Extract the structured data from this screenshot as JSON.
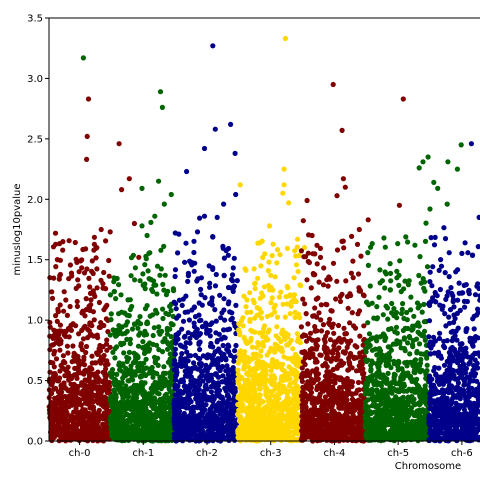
{
  "chart_data": {
    "type": "scatter",
    "xlabel": "Chromosome",
    "ylabel": "minuslog10pvalue",
    "ylim": [
      0,
      3.5
    ],
    "yticks": [
      "0.0",
      "0.5",
      "1.0",
      "1.5",
      "2.0",
      "2.5",
      "3.0",
      "3.5"
    ],
    "categories": [
      "ch-0",
      "ch-1",
      "ch-2",
      "ch-3",
      "ch-4",
      "ch-5",
      "ch-6"
    ],
    "grid": false,
    "legend": "none",
    "colors": [
      "#800000",
      "#006400",
      "#00008b",
      "#ffd700",
      "#800000",
      "#006400",
      "#00008b"
    ],
    "series": [
      {
        "category": "ch-0",
        "notable_points": [
          [
            0.14,
            2.83
          ],
          [
            0.12,
            2.52
          ],
          [
            0.11,
            2.33
          ],
          [
            0.62,
            2.46
          ],
          [
            0.78,
            2.17
          ],
          [
            0.66,
            2.08
          ],
          [
            0.86,
            1.8
          ],
          [
            0.34,
            1.75
          ],
          [
            0.48,
            1.73
          ],
          [
            0.27,
            1.6
          ],
          [
            0.93,
            1.52
          ],
          [
            0.2,
            1.49
          ]
        ]
      },
      {
        "category": "ch-1",
        "notable_points": [
          [
            0.06,
            3.17
          ],
          [
            1.27,
            2.89
          ],
          [
            1.3,
            2.76
          ],
          [
            1.24,
            2.15
          ],
          [
            0.98,
            2.09
          ],
          [
            1.33,
            1.96
          ],
          [
            1.18,
            1.86
          ],
          [
            0.98,
            1.78
          ],
          [
            1.44,
            2.04
          ],
          [
            1.06,
            1.7
          ],
          [
            1.32,
            1.61
          ]
        ]
      },
      {
        "category": "ch-2",
        "notable_points": [
          [
            2.09,
            3.27
          ],
          [
            2.37,
            2.62
          ],
          [
            2.13,
            2.58
          ],
          [
            1.96,
            2.42
          ],
          [
            2.44,
            2.38
          ],
          [
            1.68,
            2.23
          ],
          [
            2.26,
            1.96
          ],
          [
            2.45,
            2.04
          ],
          [
            1.96,
            1.86
          ],
          [
            2.16,
            1.85
          ],
          [
            1.85,
            1.73
          ]
        ]
      },
      {
        "category": "ch-3",
        "notable_points": [
          [
            3.23,
            3.33
          ],
          [
            3.21,
            2.25
          ],
          [
            3.21,
            2.12
          ],
          [
            2.52,
            2.12
          ],
          [
            3.19,
            2.05
          ],
          [
            3.28,
            1.97
          ],
          [
            2.98,
            1.78
          ],
          [
            3.42,
            1.67
          ],
          [
            2.83,
            1.64
          ],
          [
            3.53,
            1.6
          ]
        ]
      },
      {
        "category": "ch-4",
        "notable_points": [
          [
            3.98,
            2.95
          ],
          [
            5.08,
            2.83
          ],
          [
            4.12,
            2.57
          ],
          [
            4.14,
            2.17
          ],
          [
            4.04,
            2.03
          ],
          [
            4.17,
            2.1
          ],
          [
            3.57,
            1.99
          ],
          [
            5.02,
            1.95
          ],
          [
            4.53,
            1.83
          ],
          [
            4.39,
            1.75
          ]
        ]
      },
      {
        "category": "ch-5",
        "notable_points": [
          [
            5.47,
            2.35
          ],
          [
            5.39,
            2.31
          ],
          [
            5.33,
            2.26
          ],
          [
            5.78,
            2.31
          ],
          [
            5.93,
            2.25
          ],
          [
            5.99,
            2.45
          ],
          [
            5.56,
            2.14
          ],
          [
            5.62,
            2.09
          ],
          [
            5.77,
            1.96
          ],
          [
            5.5,
            1.92
          ]
        ]
      },
      {
        "category": "ch-6",
        "notable_points": [
          [
            6.15,
            2.46
          ],
          [
            6.76,
            2.45
          ],
          [
            6.59,
            2.25
          ],
          [
            6.5,
            2.17
          ],
          [
            6.54,
            2.0
          ],
          [
            6.49,
            1.75
          ],
          [
            6.87,
            1.9
          ],
          [
            6.27,
            1.85
          ],
          [
            6.6,
            1.8
          ]
        ]
      }
    ]
  }
}
